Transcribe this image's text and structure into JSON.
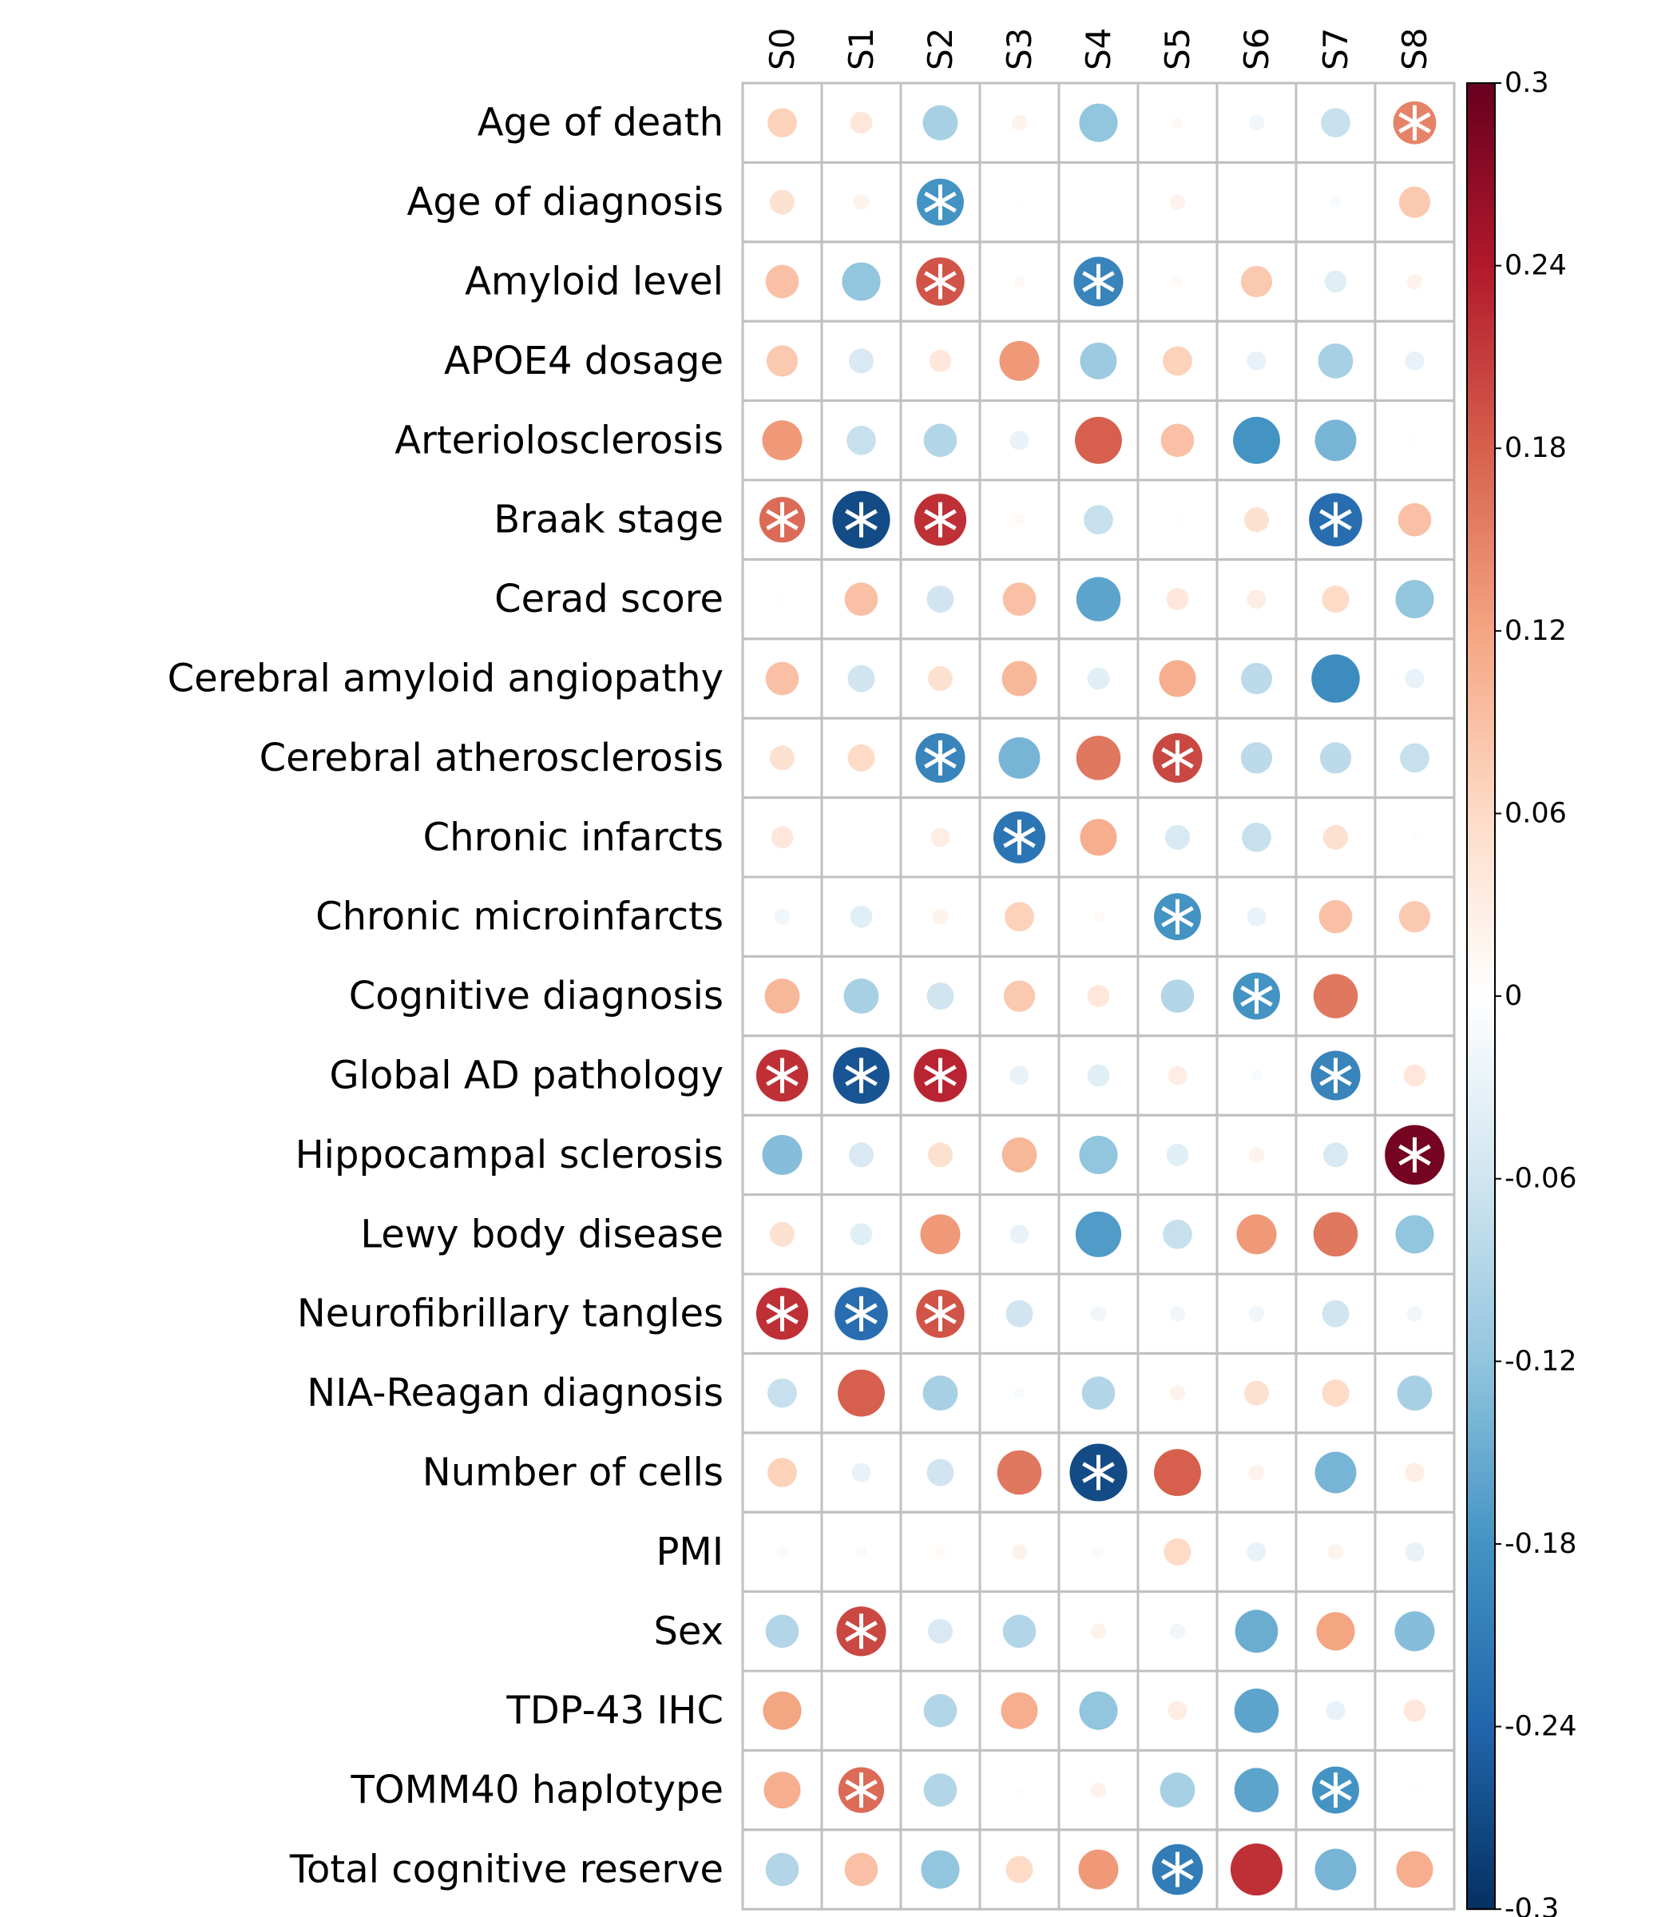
{
  "chart_data": {
    "type": "heatmap",
    "style": "circle correlation matrix",
    "columns": [
      "S0",
      "S1",
      "S2",
      "S3",
      "S4",
      "S5",
      "S6",
      "S7",
      "S8"
    ],
    "rows": [
      "Age of death",
      "Age of diagnosis",
      "Amyloid level",
      "APOE4 dosage",
      "Arteriolosclerosis",
      "Braak stage",
      "Cerad score",
      "Cerebral amyloid angiopathy",
      "Cerebral atherosclerosis",
      "Chronic infarcts",
      "Chronic microinfarcts",
      "Cognitive diagnosis",
      "Global AD pathology",
      "Hippocampal sclerosis",
      "Lewy body disease",
      "Neurofibrillary tangles",
      "NIA-Reagan diagnosis",
      "Number of cells",
      "PMI",
      "Sex",
      "TDP-43 IHC",
      "TOMM40 haplotype",
      "Total cognitive reserve"
    ],
    "values": [
      [
        0.07,
        0.04,
        -0.1,
        0.02,
        -0.12,
        0.01,
        -0.02,
        -0.07,
        0.15
      ],
      [
        0.05,
        0.02,
        -0.18,
        0.005,
        0.0,
        0.02,
        -0.003,
        -0.01,
        0.08
      ],
      [
        0.09,
        -0.12,
        0.19,
        0.01,
        -0.2,
        0.01,
        0.08,
        -0.04,
        0.02
      ],
      [
        0.08,
        -0.05,
        0.04,
        0.13,
        -0.11,
        0.07,
        -0.03,
        -0.1,
        -0.03
      ],
      [
        0.13,
        -0.07,
        -0.09,
        -0.03,
        0.18,
        0.09,
        -0.18,
        -0.14,
        0.005
      ],
      [
        0.17,
        -0.27,
        0.22,
        0.01,
        -0.07,
        0.003,
        0.05,
        -0.23,
        0.09
      ],
      [
        0.005,
        0.09,
        -0.06,
        0.09,
        -0.16,
        0.04,
        0.03,
        0.06,
        -0.12
      ],
      [
        0.09,
        -0.06,
        0.05,
        0.1,
        -0.04,
        0.11,
        -0.08,
        -0.19,
        -0.03
      ],
      [
        0.05,
        0.06,
        -0.2,
        -0.14,
        0.16,
        0.2,
        -0.08,
        -0.08,
        -0.07
      ],
      [
        0.04,
        0.0,
        0.03,
        -0.22,
        0.11,
        -0.05,
        -0.07,
        0.05,
        0.005
      ],
      [
        -0.02,
        -0.04,
        0.02,
        0.07,
        0.01,
        -0.18,
        -0.03,
        0.09,
        0.08
      ],
      [
        0.1,
        -0.1,
        -0.06,
        0.08,
        0.04,
        -0.09,
        -0.18,
        0.16,
        0.0
      ],
      [
        0.22,
        -0.26,
        0.23,
        -0.03,
        -0.04,
        0.03,
        -0.01,
        -0.2,
        0.04
      ],
      [
        -0.13,
        -0.05,
        0.05,
        0.1,
        -0.12,
        -0.04,
        0.02,
        -0.05,
        0.29
      ],
      [
        0.05,
        -0.04,
        0.13,
        -0.03,
        -0.17,
        -0.07,
        0.13,
        0.16,
        -0.12
      ],
      [
        0.22,
        -0.23,
        0.19,
        -0.06,
        -0.02,
        -0.02,
        -0.02,
        -0.06,
        -0.02
      ],
      [
        -0.07,
        0.18,
        -0.1,
        -0.01,
        -0.09,
        0.02,
        0.05,
        0.06,
        -0.1
      ],
      [
        0.07,
        -0.03,
        -0.06,
        0.16,
        -0.27,
        0.18,
        0.02,
        -0.14,
        0.03
      ],
      [
        -0.01,
        -0.01,
        0.01,
        0.02,
        -0.01,
        0.06,
        -0.03,
        0.02,
        -0.03
      ],
      [
        -0.09,
        0.2,
        -0.05,
        -0.09,
        0.02,
        -0.02,
        -0.15,
        0.12,
        -0.13
      ],
      [
        0.12,
        0.0,
        -0.09,
        0.11,
        -0.12,
        0.03,
        -0.16,
        -0.03,
        0.04
      ],
      [
        0.11,
        0.17,
        -0.09,
        0.005,
        0.02,
        -0.1,
        -0.16,
        -0.18,
        0.005
      ],
      [
        -0.09,
        0.09,
        -0.12,
        0.06,
        0.13,
        -0.21,
        0.22,
        -0.14,
        0.11
      ]
    ],
    "significant": [
      [
        0,
        8
      ],
      [
        1,
        2
      ],
      [
        2,
        2
      ],
      [
        2,
        4
      ],
      [
        5,
        0
      ],
      [
        5,
        1
      ],
      [
        5,
        2
      ],
      [
        5,
        7
      ],
      [
        8,
        2
      ],
      [
        8,
        5
      ],
      [
        9,
        3
      ],
      [
        10,
        5
      ],
      [
        11,
        6
      ],
      [
        12,
        0
      ],
      [
        12,
        1
      ],
      [
        12,
        2
      ],
      [
        12,
        7
      ],
      [
        13,
        8
      ],
      [
        15,
        0
      ],
      [
        15,
        1
      ],
      [
        15,
        2
      ],
      [
        17,
        4
      ],
      [
        19,
        1
      ],
      [
        21,
        1
      ],
      [
        21,
        7
      ],
      [
        22,
        5
      ]
    ],
    "significance_marker": "*",
    "colorbar": {
      "range": [
        -0.3,
        0.3
      ],
      "ticks": [
        "0.3",
        "0.24",
        "0.18",
        "0.12",
        "0.06",
        "0",
        "-0.06",
        "-0.12",
        "-0.18",
        "-0.24",
        "-0.3"
      ],
      "tick_values": [
        0.3,
        0.24,
        0.18,
        0.12,
        0.06,
        0,
        -0.06,
        -0.12,
        -0.18,
        -0.24,
        -0.3
      ],
      "colormap": [
        "#67001f",
        "#b2182b",
        "#d6604d",
        "#f4a582",
        "#fddbc7",
        "#ffffff",
        "#d1e5f0",
        "#92c5de",
        "#4393c3",
        "#2166ac",
        "#053061"
      ],
      "position": "right"
    },
    "grid": true,
    "title": "",
    "xlabel": "",
    "ylabel": ""
  }
}
